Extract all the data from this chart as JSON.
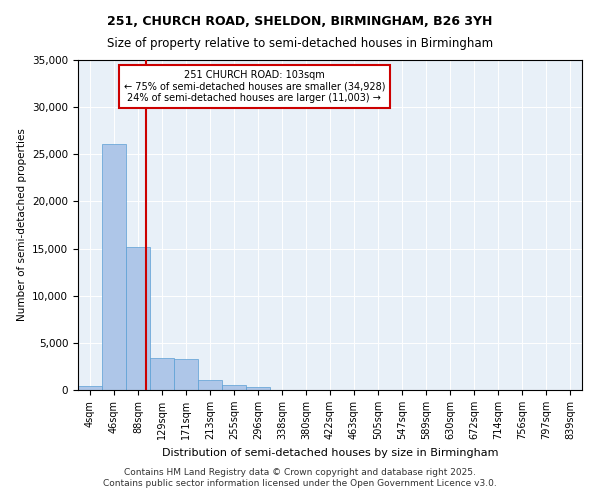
{
  "title1": "251, CHURCH ROAD, SHELDON, BIRMINGHAM, B26 3YH",
  "title2": "Size of property relative to semi-detached houses in Birmingham",
  "xlabel": "Distribution of semi-detached houses by size in Birmingham",
  "ylabel": "Number of semi-detached properties",
  "footer1": "Contains HM Land Registry data © Crown copyright and database right 2025.",
  "footer2": "Contains public sector information licensed under the Open Government Licence v3.0.",
  "annotation_title": "251 CHURCH ROAD: 103sqm",
  "annotation_line1": "← 75% of semi-detached houses are smaller (34,928)",
  "annotation_line2": "24% of semi-detached houses are larger (11,003) →",
  "property_size_sqm": 103,
  "bin_labels": [
    "4sqm",
    "46sqm",
    "88sqm",
    "129sqm",
    "171sqm",
    "213sqm",
    "255sqm",
    "296sqm",
    "338sqm",
    "380sqm",
    "422sqm",
    "463sqm",
    "505sqm",
    "547sqm",
    "589sqm",
    "630sqm",
    "672sqm",
    "714sqm",
    "756sqm",
    "797sqm",
    "839sqm"
  ],
  "bar_values": [
    400,
    26100,
    15200,
    3400,
    3300,
    1100,
    500,
    350,
    50,
    0,
    0,
    0,
    0,
    0,
    0,
    0,
    0,
    0,
    0,
    0,
    0
  ],
  "bar_color": "#aec6e8",
  "bar_edge_color": "#5a9fd4",
  "vline_color": "#cc0000",
  "vline_x": 2.35,
  "annotation_box_color": "#cc0000",
  "background_color": "#e8f0f8",
  "ylim": [
    0,
    35000
  ],
  "yticks": [
    0,
    5000,
    10000,
    15000,
    20000,
    25000,
    30000,
    35000
  ]
}
